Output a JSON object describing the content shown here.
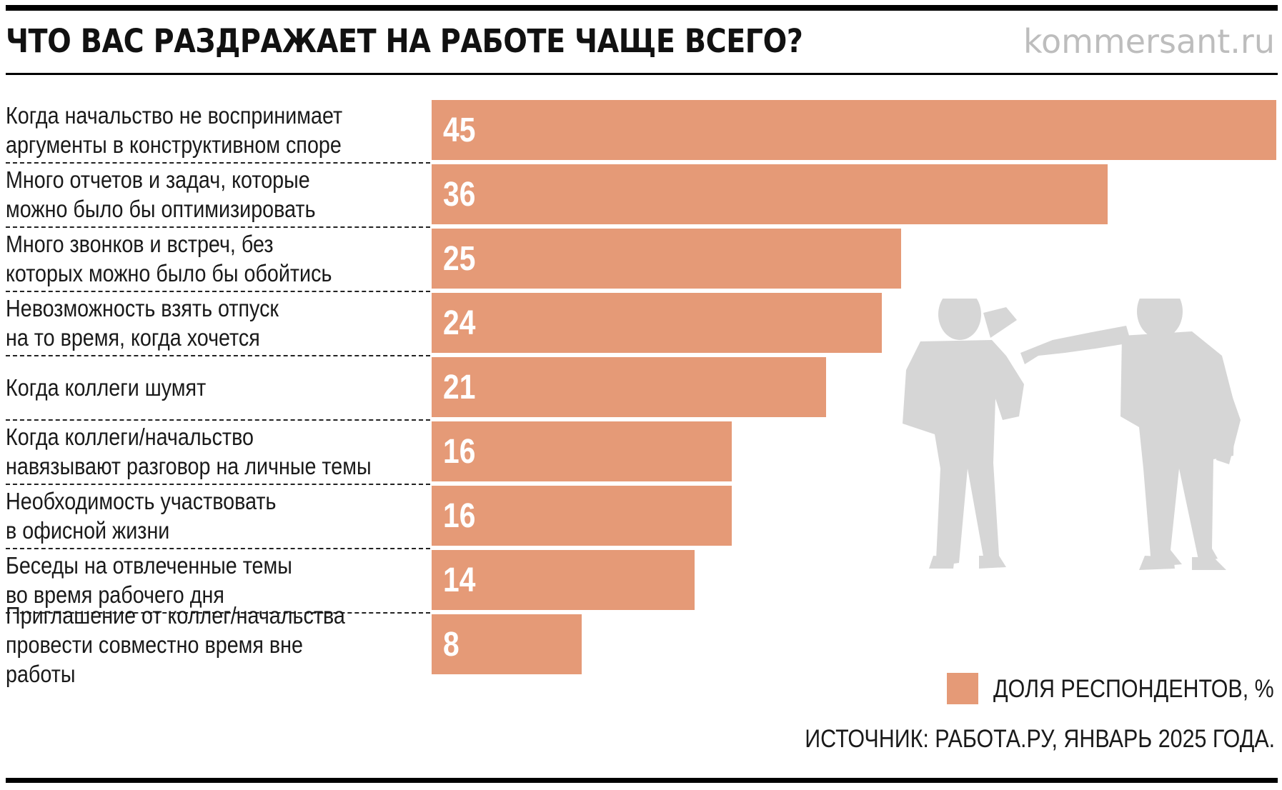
{
  "header": {
    "title": "ЧТО ВАС РАЗДРАЖАЕТ НА РАБОТЕ ЧАЩЕ ВСЕГО?",
    "site": "kommersant.ru"
  },
  "legend": {
    "label": "ДОЛЯ РЕСПОНДЕНТОВ, %"
  },
  "source": "ИСТОЧНИК: РАБОТА.РУ, ЯНВАРЬ 2025 ГОДА.",
  "colors": {
    "bar": "#e59a77",
    "silhouette": "#d6d6d6",
    "rule": "#000000"
  },
  "illustration": "two-men-silhouette",
  "chart_data": {
    "type": "bar",
    "orientation": "horizontal",
    "title": "ЧТО ВАС РАЗДРАЖАЕТ НА РАБОТЕ ЧАЩЕ ВСЕГО?",
    "categories": [
      "Когда начальство не воспринимает\nаргументы в конструктивном споре",
      "Много отчетов и задач, которые\nможно было бы оптимизировать",
      "Много звонков и встреч, без\nкоторых можно было бы обойтись",
      "Невозможность взять отпуск\nна то время, когда хочется",
      "Когда коллеги шумят",
      "Когда коллеги/начальство\nнавязывают разговор на личные темы",
      "Необходимость участвовать\nв офисной жизни",
      "Беседы на отвлеченные темы\nво время рабочего дня",
      "Приглашение от коллег/начальства\nпровести совместно время вне работы"
    ],
    "values": [
      45,
      36,
      25,
      24,
      21,
      16,
      16,
      14,
      8
    ],
    "series": [
      {
        "name": "ДОЛЯ РЕСПОНДЕНТОВ, %",
        "values": [
          45,
          36,
          25,
          24,
          21,
          16,
          16,
          14,
          8
        ]
      }
    ],
    "xlim": [
      0,
      45
    ],
    "unit": "%",
    "grid": false,
    "legend_position": "bottom-right",
    "data_labels": true
  }
}
